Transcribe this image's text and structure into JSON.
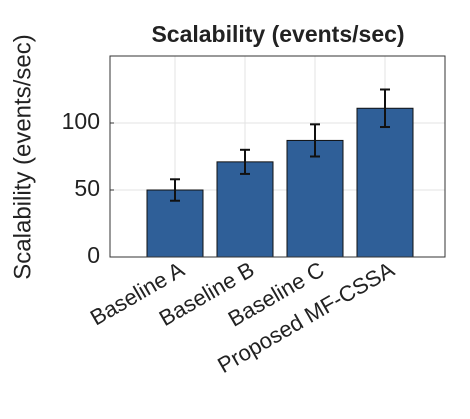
{
  "chart_data": {
    "type": "bar",
    "title": "Scalability (events/sec)",
    "y_label": "Scalability (events/sec)",
    "categories": [
      "Baseline A",
      "Baseline B",
      "Baseline C",
      "Proposed MF-CSSA"
    ],
    "values": [
      50,
      71,
      87,
      111
    ],
    "errors": [
      8,
      9,
      12,
      14
    ],
    "color": "#2f5f98",
    "ylim": [
      0,
      150
    ],
    "yticks": [
      0,
      50,
      100
    ],
    "grid": true
  }
}
